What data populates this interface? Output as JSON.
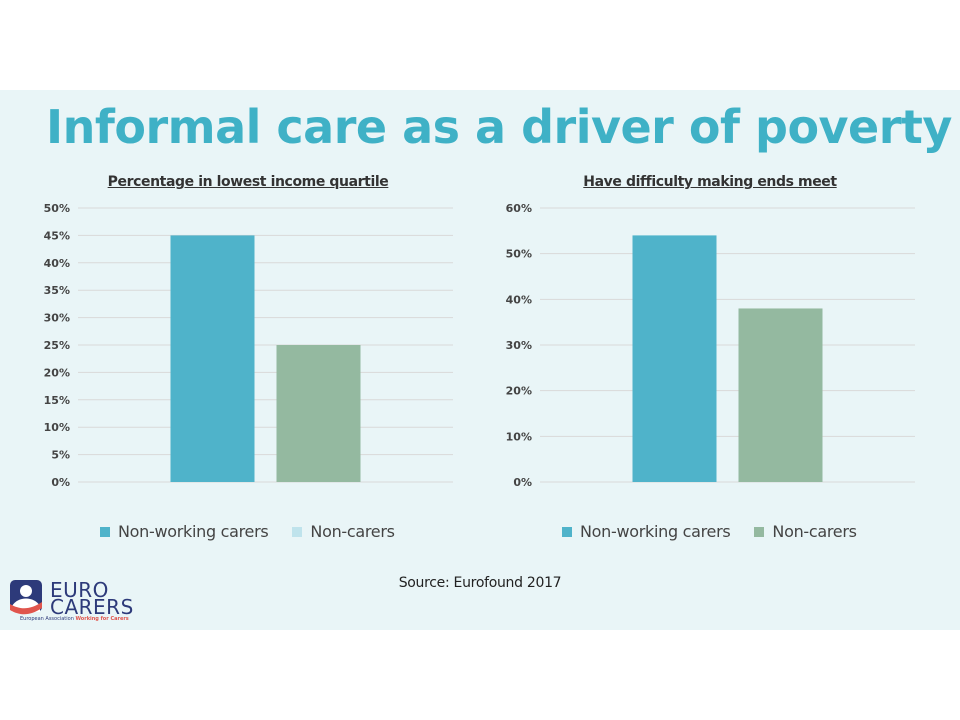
{
  "title": "Informal care as a driver of poverty",
  "source": "Source: Eurofound  2017",
  "logo": {
    "line1": "EURO",
    "line2": "CARERS",
    "tag_a": "European Association",
    "tag_b": "Working for Carers"
  },
  "colors": {
    "background": "#e9f5f7",
    "title": "#3fb1c6",
    "series_teal": "#4fb3ca",
    "series_green": "#94b9a0",
    "legend_light_teal": "#bfe3ec",
    "grid": "#d9d9d9"
  },
  "chart_data": [
    {
      "type": "bar",
      "title": "Percentage in lowest income quartile",
      "categories": [
        "Non-working carers",
        "Non-carers"
      ],
      "values": [
        45,
        25
      ],
      "ylim": [
        0,
        50
      ],
      "yticks": [
        "0%",
        "5%",
        "10%",
        "15%",
        "20%",
        "25%",
        "30%",
        "35%",
        "40%",
        "45%",
        "50%"
      ],
      "bar_colors": [
        "#4fb3ca",
        "#94b9a0"
      ],
      "legend": [
        "Non-working carers",
        "Non-carers"
      ],
      "legend_colors": [
        "#4fb3ca",
        "#bfe3ec"
      ],
      "legend_position": "bottom",
      "grid": true
    },
    {
      "type": "bar",
      "title": "Have difficulty making ends meet",
      "categories": [
        "Non-working carers",
        "Non-carers"
      ],
      "values": [
        54,
        38
      ],
      "ylim": [
        0,
        60
      ],
      "yticks": [
        "0%",
        "10%",
        "20%",
        "30%",
        "40%",
        "50%",
        "60%"
      ],
      "bar_colors": [
        "#4fb3ca",
        "#94b9a0"
      ],
      "legend": [
        "Non-working carers",
        "Non-carers"
      ],
      "legend_colors": [
        "#4fb3ca",
        "#94b9a0"
      ],
      "legend_position": "bottom",
      "grid": true
    }
  ]
}
